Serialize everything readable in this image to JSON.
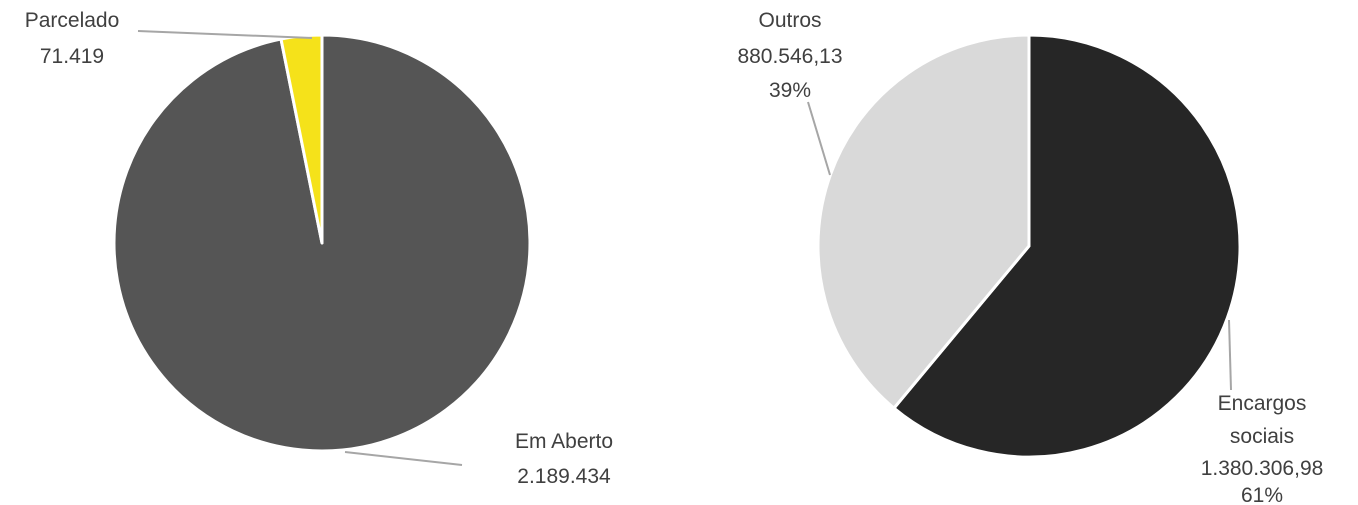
{
  "chart_data": [
    {
      "type": "pie",
      "start_angle_deg": 0,
      "direction": "clockwise",
      "slices": [
        {
          "label": "Em Aberto",
          "value_text": "2.189.434",
          "value": 2189434,
          "color": "#555555"
        },
        {
          "label": "Parcelado",
          "value_text": "71.419",
          "value": 71419,
          "color": "#f5e21a"
        }
      ]
    },
    {
      "type": "pie",
      "start_angle_deg": 0,
      "direction": "clockwise",
      "slices": [
        {
          "label_lines": [
            "Encargos",
            "sociais"
          ],
          "value_text": "1.380.306,98",
          "pct_text": "61%",
          "value": 1380306.98,
          "color": "#262626"
        },
        {
          "label_lines": [
            "Outros"
          ],
          "value_text": "880.546,13",
          "pct_text": "39%",
          "value": 880546.13,
          "color": "#d9d9d9"
        }
      ]
    }
  ],
  "colors": {
    "separator": "#ffffff",
    "leader_line": "#a6a6a6",
    "label_text": "#404040"
  }
}
